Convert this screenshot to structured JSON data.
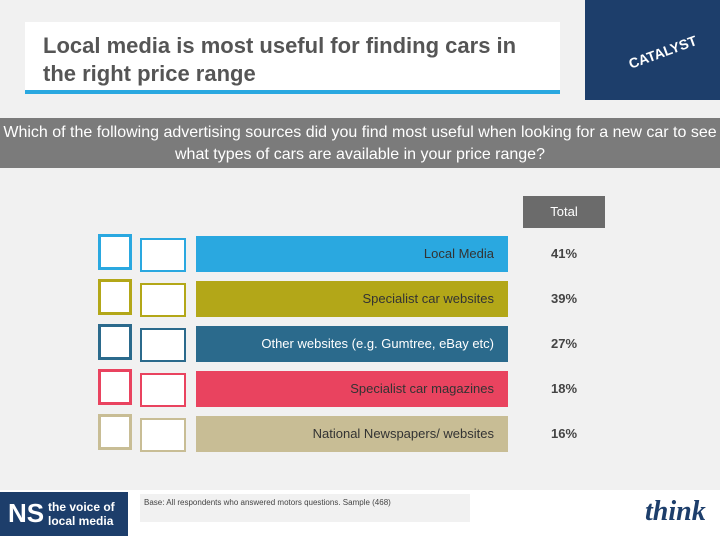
{
  "header": {
    "title": "Local media is most useful for finding cars in the right price range",
    "logo": "CATALYST"
  },
  "question": "Which of the following advertising sources did you find most useful when looking for a new car to see what types of cars are available in your price range?",
  "table": {
    "column_header": "Total",
    "rows": [
      {
        "label": "Local Media",
        "value": "41%",
        "color": "#2aa8e0"
      },
      {
        "label": "Specialist car websites",
        "value": "39%",
        "color": "#b3a718"
      },
      {
        "label": "Other websites (e.g. Gumtree, eBay etc)",
        "value": "27%",
        "color": "#2b6a8c"
      },
      {
        "label": "Specialist car magazines",
        "value": "18%",
        "color": "#e9435f"
      },
      {
        "label": "National Newspapers/ websites",
        "value": "16%",
        "color": "#c8bd95"
      }
    ]
  },
  "footer": {
    "note": "Base: All respondents who answered motors questions. Sample (468)",
    "left_logo": {
      "mark": "NS",
      "line1": "the voice of",
      "line2": "local media"
    },
    "right_logo": "think"
  }
}
